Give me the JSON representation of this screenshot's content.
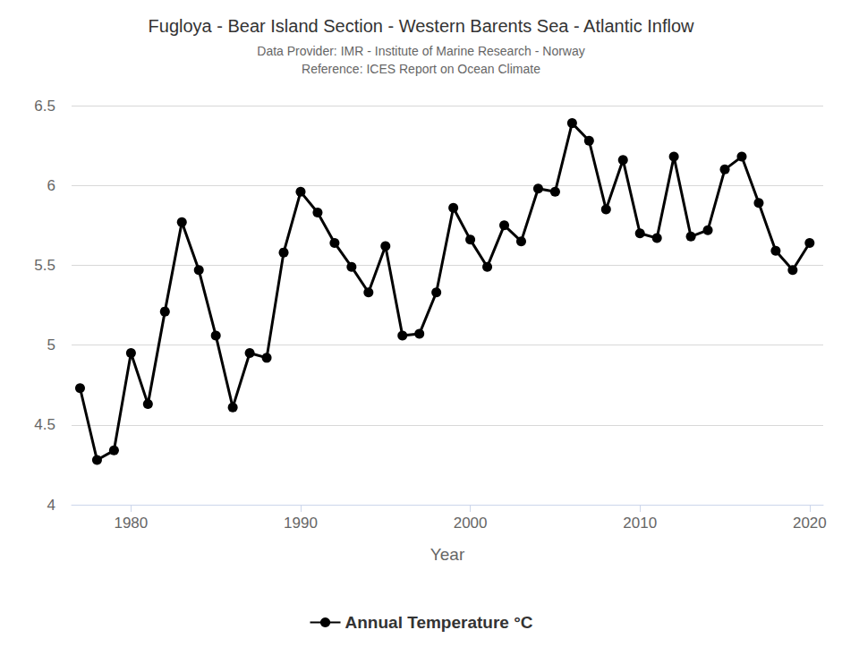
{
  "chart_data": {
    "type": "line",
    "title": "Fugloya - Bear Island Section - Western Barents Sea - Atlantic Inflow",
    "subtitle": [
      "Data Provider: IMR - Institute of Marine Research - Norway",
      "Reference: ICES Report on Ocean Climate"
    ],
    "x_label": "Year",
    "x": [
      1977,
      1978,
      1979,
      1980,
      1981,
      1982,
      1983,
      1984,
      1985,
      1986,
      1987,
      1988,
      1989,
      1990,
      1991,
      1992,
      1993,
      1994,
      1995,
      1996,
      1997,
      1998,
      1999,
      2000,
      2001,
      2002,
      2003,
      2004,
      2005,
      2006,
      2007,
      2008,
      2009,
      2010,
      2011,
      2012,
      2013,
      2014,
      2015,
      2016,
      2017,
      2018,
      2019,
      2020
    ],
    "series": [
      {
        "name": "Annual Temperature °C",
        "color": "#000000",
        "marker": "circle",
        "line_style": "solid",
        "values": [
          4.73,
          4.28,
          4.34,
          4.95,
          4.63,
          5.21,
          5.77,
          5.47,
          5.06,
          4.61,
          4.95,
          4.92,
          5.58,
          5.96,
          5.83,
          5.64,
          5.49,
          5.33,
          5.62,
          5.06,
          5.07,
          5.33,
          5.86,
          5.66,
          5.49,
          5.75,
          5.65,
          5.98,
          5.96,
          6.39,
          6.28,
          5.85,
          6.16,
          5.7,
          5.67,
          6.18,
          5.68,
          5.72,
          6.1,
          6.18,
          5.89,
          5.59,
          5.47,
          5.64
        ]
      }
    ],
    "xlim": [
      1976.5,
      2020.8
    ],
    "xticks": [
      1980,
      1990,
      2000,
      2010,
      2020
    ],
    "ylim": [
      4,
      6.5
    ],
    "yticks": [
      4,
      4.5,
      5,
      5.5,
      6,
      6.5
    ],
    "grid": true,
    "legend": "bottom"
  }
}
